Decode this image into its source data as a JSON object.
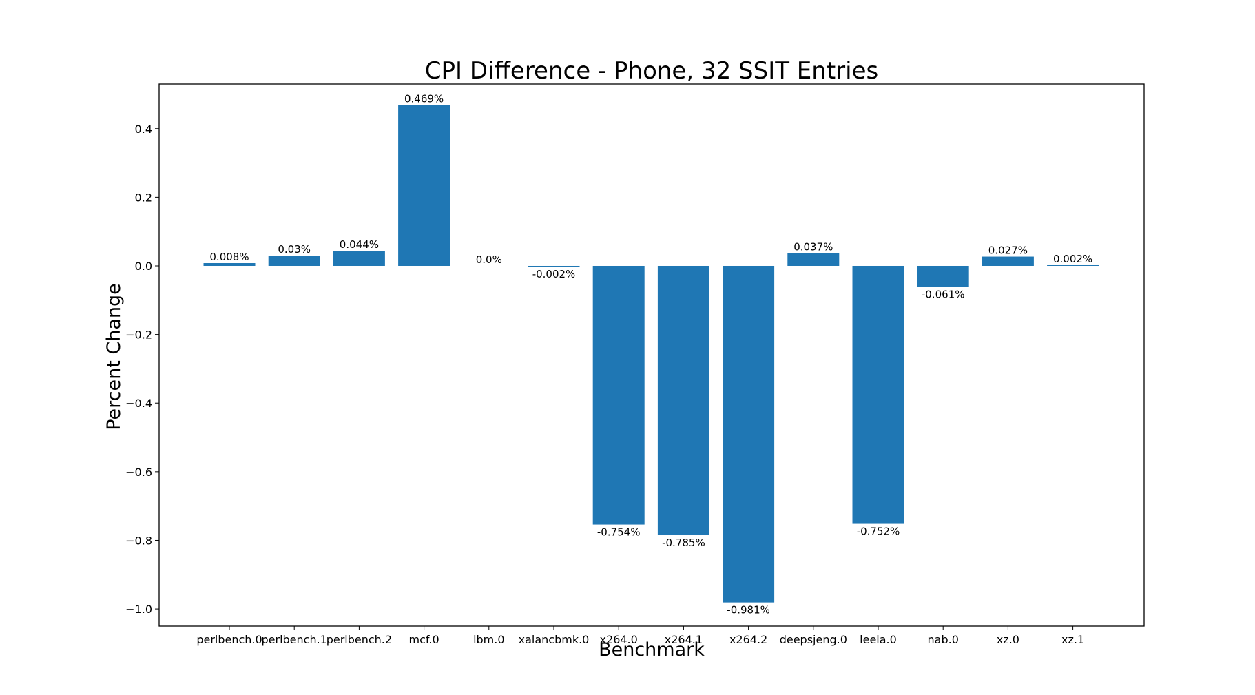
{
  "chart_data": {
    "type": "bar",
    "title": "CPI Difference - Phone, 32 SSIT Entries",
    "xlabel": "Benchmark",
    "ylabel": "Percent Change",
    "categories": [
      "perlbench.0",
      "perlbench.1",
      "perlbench.2",
      "mcf.0",
      "lbm.0",
      "xalancbmk.0",
      "x264.0",
      "x264.1",
      "x264.2",
      "deepsjeng.0",
      "leela.0",
      "nab.0",
      "xz.0",
      "xz.1"
    ],
    "values": [
      0.008,
      0.03,
      0.044,
      0.469,
      0.0,
      -0.002,
      -0.754,
      -0.785,
      -0.981,
      0.037,
      -0.752,
      -0.061,
      0.027,
      0.002
    ],
    "value_labels": [
      "0.008%",
      "0.03%",
      "0.044%",
      "0.469%",
      "0.0%",
      "-0.002%",
      "-0.754%",
      "-0.785%",
      "-0.981%",
      "0.037%",
      "-0.752%",
      "-0.061%",
      "0.027%",
      "0.002%"
    ],
    "ylim": [
      -1.05,
      0.53
    ],
    "yticks": [
      0.4,
      0.2,
      0.0,
      -0.2,
      -0.4,
      -0.6,
      -0.8,
      -1.0
    ],
    "ytick_labels": [
      "0.4",
      "0.2",
      "0.0",
      "−0.2",
      "−0.4",
      "−0.6",
      "−0.8",
      "−1.0"
    ],
    "bar_color": "#1f77b4",
    "grid": false,
    "legend": null
  }
}
